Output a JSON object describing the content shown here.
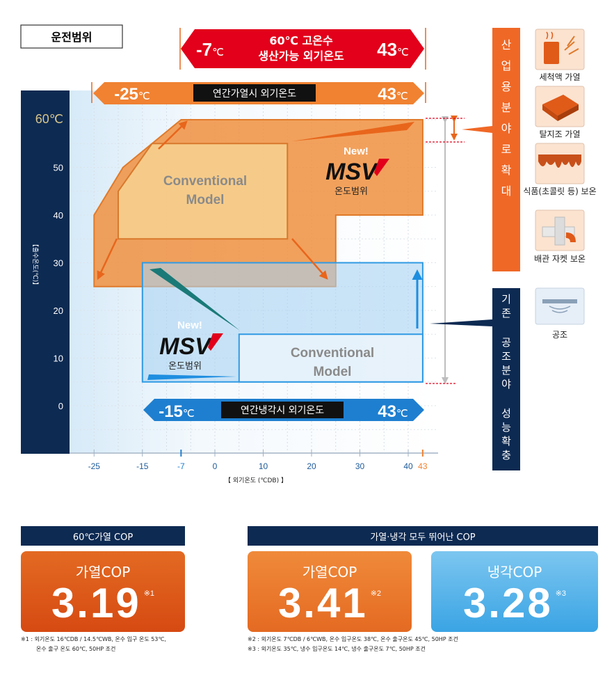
{
  "title": "운전범위",
  "hot_water_range": {
    "title_line1": "60℃ 고온수",
    "title_line2": "생산가능 외기온도",
    "min": "-7",
    "max": "43",
    "unit": "℃"
  },
  "annual_heating_range": {
    "label": "연간가열시 외기온도",
    "min": "-25",
    "max": "43",
    "unit": "℃"
  },
  "annual_cooling_range": {
    "label": "연간냉각시 외기온도",
    "min": "-15",
    "max": "43",
    "unit": "℃"
  },
  "chart_data": {
    "type": "area",
    "xlabel": "【 외기온도 (℃DB) 】",
    "ylabel": "【출수온도(℃)】",
    "x_ticks": [
      "-25",
      "-15",
      "-7",
      "0",
      "10",
      "20",
      "30",
      "40",
      "43"
    ],
    "y_ticks": [
      "0",
      "10",
      "20",
      "30",
      "40",
      "50",
      "60℃"
    ],
    "xlim": [
      -30,
      47
    ],
    "ylim": [
      -10,
      66
    ],
    "series": [
      {
        "name": "MSV 온도범위 (가열)",
        "polygon": [
          [
            -25,
            25
          ],
          [
            -25,
            40
          ],
          [
            -19,
            50
          ],
          [
            -7,
            60
          ],
          [
            43,
            60
          ],
          [
            43,
            40
          ],
          [
            25,
            40
          ],
          [
            25,
            25
          ]
        ]
      },
      {
        "name": "Conventional Model (가열)",
        "polygon": [
          [
            -20,
            35
          ],
          [
            -20,
            45
          ],
          [
            -13,
            55
          ],
          [
            15,
            55
          ],
          [
            15,
            35
          ]
        ]
      },
      {
        "name": "MSV 온도범위 (냉각)",
        "polygon": [
          [
            -15,
            5
          ],
          [
            -15,
            30
          ],
          [
            43,
            30
          ],
          [
            43,
            5
          ]
        ]
      },
      {
        "name": "Conventional Model (냉각)",
        "polygon": [
          [
            5,
            5
          ],
          [
            5,
            15
          ],
          [
            43,
            15
          ],
          [
            43,
            5
          ]
        ]
      }
    ],
    "labels": {
      "new": "New!",
      "msv": "MSV",
      "range": "온도범위",
      "conventional_line1": "Conventional",
      "conventional_line2": "Model"
    }
  },
  "industrial": {
    "banner": "산업용분야로확대",
    "items": [
      {
        "label": "세척액 가열",
        "icon": "water-heating-icon"
      },
      {
        "label": "탈지조 가열",
        "icon": "degreasing-tank-icon"
      },
      {
        "label": "식품(초콜릿 등) 보온",
        "icon": "chocolate-icon"
      },
      {
        "label": "배관 자켓 보온",
        "icon": "pipe-jacket-icon"
      }
    ]
  },
  "hvac": {
    "banner": "기존 공조분야 성능확충",
    "items": [
      {
        "label": "공조",
        "icon": "ceiling-cassette-icon"
      }
    ]
  },
  "cop": {
    "left_header": "60℃가열 COP",
    "right_header": "가열·냉각 모두 뛰어난 COP",
    "boxes": [
      {
        "label": "가열COP",
        "value": "3.19",
        "mark": "※1",
        "color": "#e05818"
      },
      {
        "label": "가열COP",
        "value": "3.41",
        "mark": "※2",
        "color": "#ee7a2e"
      },
      {
        "label": "냉각COP",
        "value": "3.28",
        "mark": "※3",
        "color": "#5ab4ea"
      }
    ],
    "notes": {
      "n1_line1": "※1 : 외기온도 16℃DB / 14.5℃WB, 온수 입구 온도 53℃,",
      "n1_line2": "온수 출구 온도 60℃, 50HP 조건",
      "n2": "※2 : 외기온도 7℃DB / 6℃WB, 온수 입구온도 38℃, 온수 출구온도 45℃, 50HP 조건",
      "n3": "※3 : 외기온도 35℃, 냉수 입구온도 14℃, 냉수 출구온도 7℃, 50HP 조건"
    }
  },
  "colors": {
    "navy": "#0d2a52",
    "orange": "#f08232",
    "red": "#e2001a",
    "blue": "#1e7fd0"
  }
}
